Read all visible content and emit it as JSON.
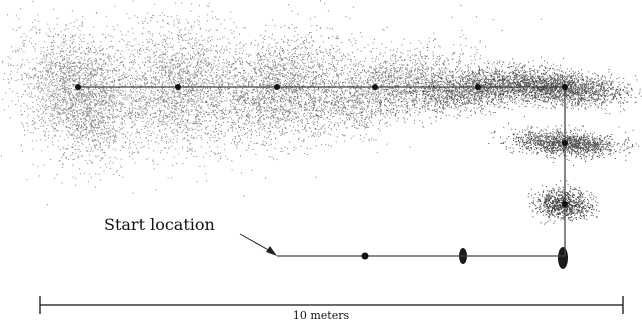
{
  "figure": {
    "start_label": "Start location",
    "scale_label": "10 meters"
  }
}
